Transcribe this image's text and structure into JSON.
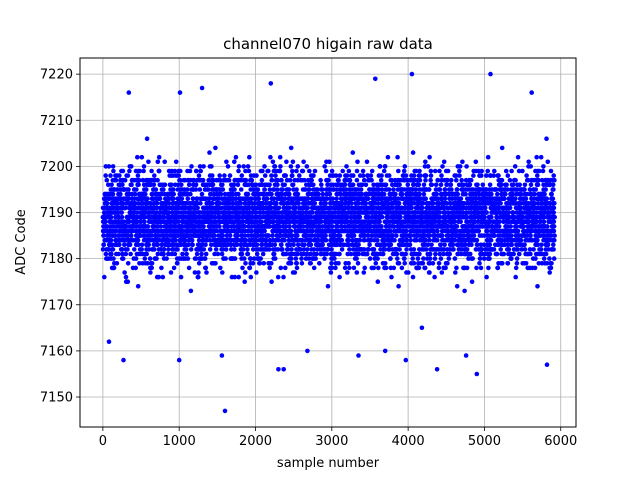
{
  "chart_data": {
    "type": "scatter",
    "title": "channel070 higain raw data",
    "xlabel": "sample number",
    "ylabel": "ADC Code",
    "xlim": [
      -300,
      6200
    ],
    "ylim": [
      7143.5,
      7223.5
    ],
    "xticks": [
      0,
      1000,
      2000,
      3000,
      4000,
      5000,
      6000
    ],
    "yticks": [
      7150,
      7160,
      7170,
      7180,
      7190,
      7200,
      7210,
      7220
    ],
    "grid": true,
    "marker_color": "#0000ff",
    "series": [
      {
        "n_points": 5920,
        "x_range": [
          0,
          5920
        ],
        "center": 7189,
        "typical_spread": 7,
        "notable_points": [
          {
            "x": 1600,
            "y": 7147
          },
          {
            "x": 4900,
            "y": 7155
          },
          {
            "x": 4050,
            "y": 7220
          },
          {
            "x": 5080,
            "y": 7220
          },
          {
            "x": 2200,
            "y": 7218
          },
          {
            "x": 3570,
            "y": 7219
          },
          {
            "x": 340,
            "y": 7216
          },
          {
            "x": 1010,
            "y": 7216
          },
          {
            "x": 1300,
            "y": 7217
          },
          {
            "x": 5620,
            "y": 7216
          },
          {
            "x": 5820,
            "y": 7157
          },
          {
            "x": 270,
            "y": 7158
          },
          {
            "x": 1000,
            "y": 7158
          },
          {
            "x": 1560,
            "y": 7159
          },
          {
            "x": 2300,
            "y": 7156
          },
          {
            "x": 2370,
            "y": 7156
          },
          {
            "x": 4380,
            "y": 7156
          },
          {
            "x": 4760,
            "y": 7159
          },
          {
            "x": 3970,
            "y": 7158
          },
          {
            "x": 3350,
            "y": 7159
          },
          {
            "x": 3700,
            "y": 7160
          },
          {
            "x": 2680,
            "y": 7160
          },
          {
            "x": 80,
            "y": 7162
          },
          {
            "x": 4180,
            "y": 7165
          }
        ]
      }
    ]
  }
}
